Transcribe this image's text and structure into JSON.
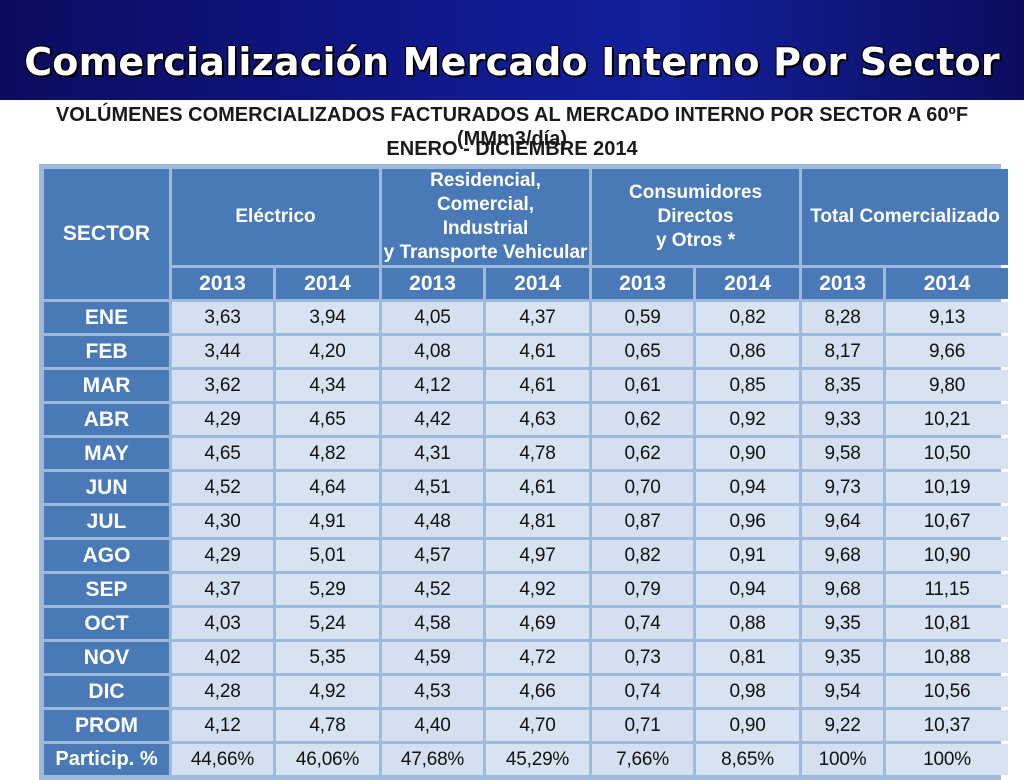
{
  "header": {
    "title": "Comercialización Mercado Interno Por Sector"
  },
  "subtitle": {
    "line1": "VOLÚMENES COMERCIALIZADOS FACTURADOS AL MERCADO INTERNO POR SECTOR A 60ºF (MMm3/día)",
    "line2": "ENERO - DICIEMBRE 2014"
  },
  "colors": {
    "banner": "#0f1585",
    "header_cell": "#4a79b8",
    "data_cell": "#d4e0ef"
  },
  "table": {
    "sector_label": "SECTOR",
    "groups": [
      {
        "label": "Eléctrico"
      },
      {
        "label": "Residencial, Comercial, Industrial y Transporte Vehicular",
        "lines": [
          "Residencial, Comercial,",
          "Industrial",
          "y Transporte Vehicular"
        ]
      },
      {
        "label": "Consumidores Directos y Otros *",
        "lines": [
          "Consumidores Directos",
          "y Otros *"
        ]
      },
      {
        "label": "Total Comercializado"
      }
    ],
    "years": [
      "2013",
      "2014",
      "2013",
      "2014",
      "2013",
      "2014",
      "2013",
      "2014"
    ],
    "rows": [
      {
        "label": "ENE",
        "values": [
          "3,63",
          "3,94",
          "4,05",
          "4,37",
          "0,59",
          "0,82",
          "8,28",
          "9,13"
        ]
      },
      {
        "label": "FEB",
        "values": [
          "3,44",
          "4,20",
          "4,08",
          "4,61",
          "0,65",
          "0,86",
          "8,17",
          "9,66"
        ]
      },
      {
        "label": "MAR",
        "values": [
          "3,62",
          "4,34",
          "4,12",
          "4,61",
          "0,61",
          "0,85",
          "8,35",
          "9,80"
        ]
      },
      {
        "label": "ABR",
        "values": [
          "4,29",
          "4,65",
          "4,42",
          "4,63",
          "0,62",
          "0,92",
          "9,33",
          "10,21"
        ]
      },
      {
        "label": "MAY",
        "values": [
          "4,65",
          "4,82",
          "4,31",
          "4,78",
          "0,62",
          "0,90",
          "9,58",
          "10,50"
        ]
      },
      {
        "label": "JUN",
        "values": [
          "4,52",
          "4,64",
          "4,51",
          "4,61",
          "0,70",
          "0,94",
          "9,73",
          "10,19"
        ]
      },
      {
        "label": "JUL",
        "values": [
          "4,30",
          "4,91",
          "4,48",
          "4,81",
          "0,87",
          "0,96",
          "9,64",
          "10,67"
        ]
      },
      {
        "label": "AGO",
        "values": [
          "4,29",
          "5,01",
          "4,57",
          "4,97",
          "0,82",
          "0,91",
          "9,68",
          "10,90"
        ]
      },
      {
        "label": "SEP",
        "values": [
          "4,37",
          "5,29",
          "4,52",
          "4,92",
          "0,79",
          "0,94",
          "9,68",
          "11,15"
        ]
      },
      {
        "label": "OCT",
        "values": [
          "4,03",
          "5,24",
          "4,58",
          "4,69",
          "0,74",
          "0,88",
          "9,35",
          "10,81"
        ]
      },
      {
        "label": "NOV",
        "values": [
          "4,02",
          "5,35",
          "4,59",
          "4,72",
          "0,73",
          "0,81",
          "9,35",
          "10,88"
        ]
      },
      {
        "label": "DIC",
        "values": [
          "4,28",
          "4,92",
          "4,53",
          "4,66",
          "0,74",
          "0,98",
          "9,54",
          "10,56"
        ]
      },
      {
        "label": "PROM",
        "values": [
          "4,12",
          "4,78",
          "4,40",
          "4,70",
          "0,71",
          "0,90",
          "9,22",
          "10,37"
        ]
      },
      {
        "label": "Particip. %",
        "values": [
          "44,66%",
          "46,06%",
          "47,68%",
          "45,29%",
          "7,66%",
          "8,65%",
          "100%",
          "100%"
        ]
      }
    ]
  }
}
